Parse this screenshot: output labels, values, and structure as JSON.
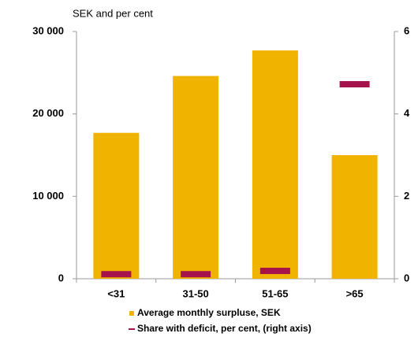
{
  "chart_data": {
    "type": "bar",
    "subtitle": "SEK and per cent",
    "categories": [
      "<31",
      "31-50",
      "51-65",
      ">65"
    ],
    "series": [
      {
        "name": "Average monthly surpluse, SEK",
        "color": "#f0b400",
        "values": [
          17700,
          24600,
          27700,
          15000
        ]
      },
      {
        "name": "Share with deficit, per cent, (right axis)",
        "color": "#a6124c",
        "axis": "y2",
        "values": [
          0.11,
          0.11,
          0.19,
          4.72
        ]
      }
    ],
    "ylim": [
      0,
      30000
    ],
    "yticks": [
      0,
      {
        "value": 10000,
        "label": "10 000"
      },
      {
        "value": 20000,
        "label": "20 000"
      },
      {
        "value": 30000,
        "label": "30 000"
      }
    ],
    "y2lim": [
      0,
      6
    ],
    "y2ticks": [
      0,
      2,
      4,
      6
    ]
  }
}
